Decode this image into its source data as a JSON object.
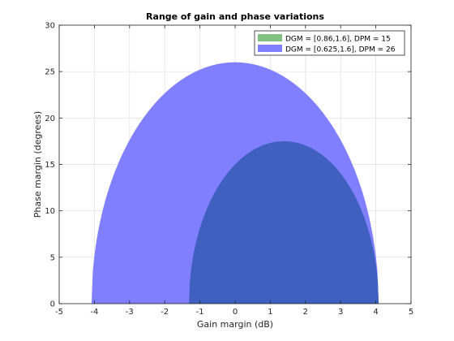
{
  "chart_data": {
    "type": "area",
    "title": "Range of gain and phase variations",
    "xlabel": "Gain margin (dB)",
    "ylabel": "Phase margin (degrees)",
    "xlim": [
      -5,
      5
    ],
    "ylim": [
      0,
      30
    ],
    "xticks": [
      -5,
      -4,
      -3,
      -2,
      -1,
      0,
      1,
      2,
      3,
      4,
      5
    ],
    "yticks": [
      0,
      5,
      10,
      15,
      20,
      25,
      30
    ],
    "grid": true,
    "legend_position": "top-right",
    "series": [
      {
        "name": "DGM = [0.86,1.6], DPM = 15",
        "color": "#80C080",
        "gain_margin_range_db": [
          -1.31,
          4.08
        ],
        "peak_phase_margin_deg": 17.5,
        "peak_at_gain_margin_db": 1.39
      },
      {
        "name": "DGM = [0.625,1.6], DPM = 26",
        "color": "#7F7FFF",
        "gain_margin_range_db": [
          -4.08,
          4.08
        ],
        "peak_phase_margin_deg": 26,
        "peak_at_gain_margin_db": 0
      }
    ],
    "overlap_color": "#4060BF"
  }
}
